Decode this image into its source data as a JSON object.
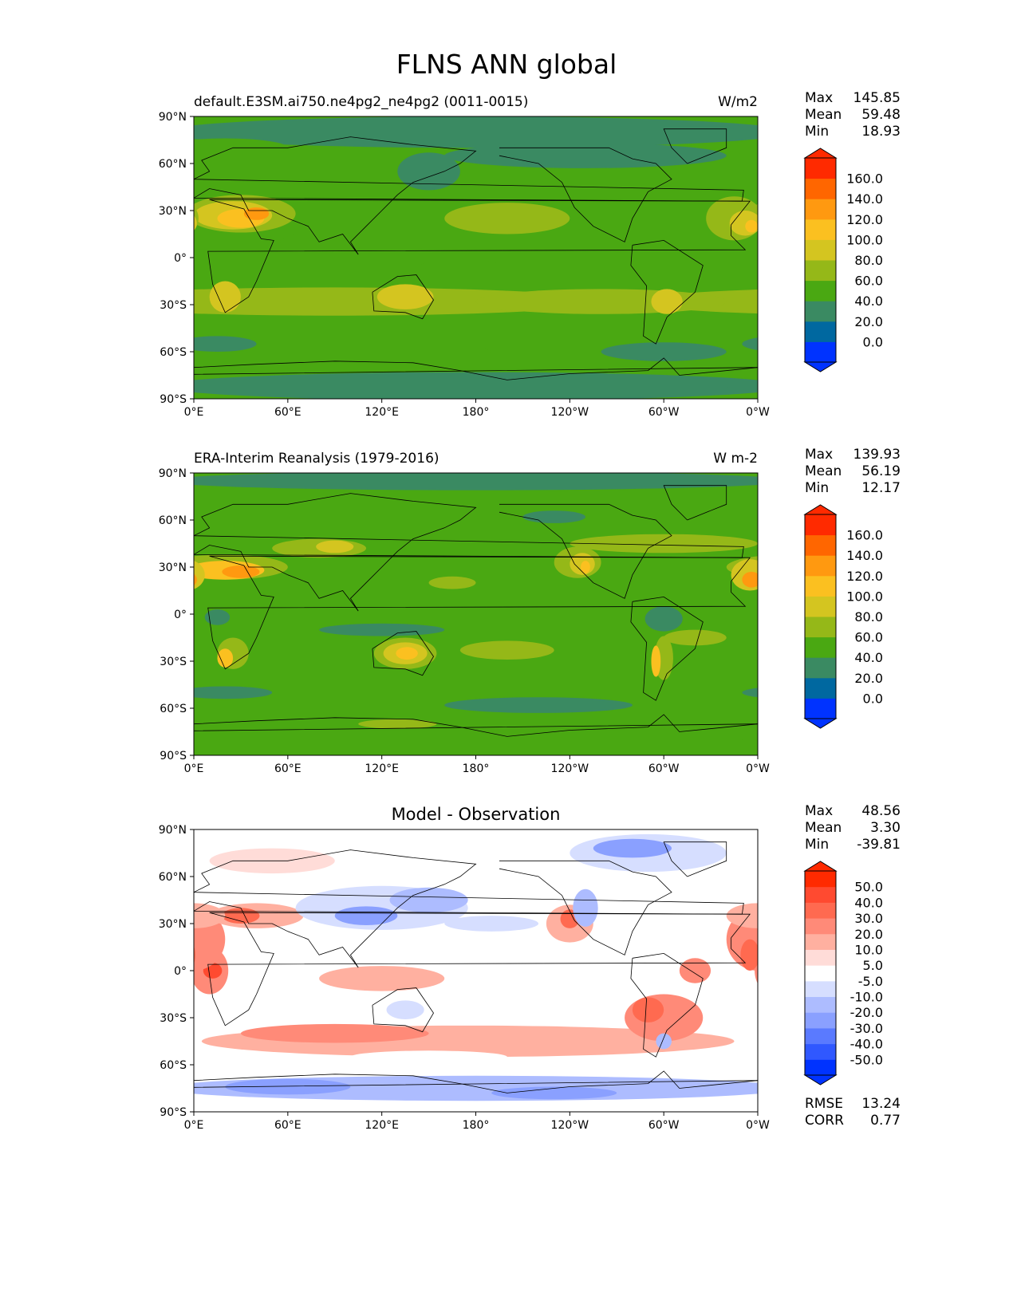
{
  "figure_title": "FLNS ANN global",
  "lat_ticks": [
    "90°N",
    "60°N",
    "30°N",
    "0°",
    "30°S",
    "60°S",
    "90°S"
  ],
  "lon_ticks": [
    "0°E",
    "60°E",
    "120°E",
    "180°",
    "120°W",
    "60°W",
    "0°W"
  ],
  "colors": {
    "main": [
      "#0033ff",
      "#0068a0",
      "#3a8a62",
      "#4aa812",
      "#95b818",
      "#d4c520",
      "#fbc020",
      "#ff9910",
      "#ff6600",
      "#ff2a00"
    ],
    "diff": [
      "#0033ff",
      "#3058ff",
      "#5a7aff",
      "#8aa0ff",
      "#adbcff",
      "#d6deff",
      "#ffffff",
      "#ffdcd8",
      "#ffb0a0",
      "#ff8a78",
      "#ff6a50",
      "#ff4a30",
      "#ff2a00"
    ]
  },
  "panels": [
    {
      "title_left": "default.E3SM.ai750.ne4pg2_ne4pg2 (0011-0015)",
      "title_right": "W/m2",
      "title_center": "",
      "stats": [
        {
          "label": "Max",
          "value": "145.85"
        },
        {
          "label": "Mean",
          "value": "59.48"
        },
        {
          "label": "Min",
          "value": "18.93"
        }
      ],
      "colorbar_labels": [
        "0.0",
        "20.0",
        "40.0",
        "60.0",
        "80.0",
        "100.0",
        "120.0",
        "140.0",
        "160.0"
      ]
    },
    {
      "title_left": "ERA-Interim Reanalysis (1979-2016)",
      "title_right": "W m-2",
      "title_center": "",
      "stats": [
        {
          "label": "Max",
          "value": "139.93"
        },
        {
          "label": "Mean",
          "value": "56.19"
        },
        {
          "label": "Min",
          "value": "12.17"
        }
      ],
      "colorbar_labels": [
        "0.0",
        "20.0",
        "40.0",
        "60.0",
        "80.0",
        "100.0",
        "120.0",
        "140.0",
        "160.0"
      ]
    },
    {
      "title_left": "",
      "title_right": "",
      "title_center": "Model - Observation",
      "stats": [
        {
          "label": "Max",
          "value": "48.56"
        },
        {
          "label": "Mean",
          "value": "3.30"
        },
        {
          "label": "Min",
          "value": "-39.81"
        }
      ],
      "colorbar_labels": [
        "-50.0",
        "-40.0",
        "-30.0",
        "-20.0",
        "-10.0",
        "-5.0",
        "5.0",
        "10.0",
        "20.0",
        "30.0",
        "40.0",
        "50.0"
      ],
      "metrics": [
        {
          "label": "RMSE",
          "value": "13.24"
        },
        {
          "label": "CORR",
          "value": "0.77"
        }
      ]
    }
  ],
  "chart_data": [
    {
      "type": "heatmap",
      "title": "default.E3SM.ai750.ne4pg2_ne4pg2 (0011-0015)",
      "units": "W/m2",
      "xlim": [
        0,
        360
      ],
      "ylim": [
        -90,
        90
      ],
      "levels": [
        0,
        20,
        40,
        60,
        80,
        100,
        120,
        140,
        160
      ],
      "max": 145.85,
      "mean": 59.48,
      "min": 18.93
    },
    {
      "type": "heatmap",
      "title": "ERA-Interim Reanalysis (1979-2016)",
      "units": "W m-2",
      "xlim": [
        0,
        360
      ],
      "ylim": [
        -90,
        90
      ],
      "levels": [
        0,
        20,
        40,
        60,
        80,
        100,
        120,
        140,
        160
      ],
      "max": 139.93,
      "mean": 56.19,
      "min": 12.17
    },
    {
      "type": "heatmap",
      "title": "Model - Observation",
      "xlim": [
        0,
        360
      ],
      "ylim": [
        -90,
        90
      ],
      "levels": [
        -50,
        -40,
        -30,
        -20,
        -10,
        -5,
        5,
        10,
        20,
        30,
        40,
        50
      ],
      "max": 48.56,
      "mean": 3.3,
      "min": -39.81,
      "rmse": 13.24,
      "corr": 0.77
    }
  ]
}
